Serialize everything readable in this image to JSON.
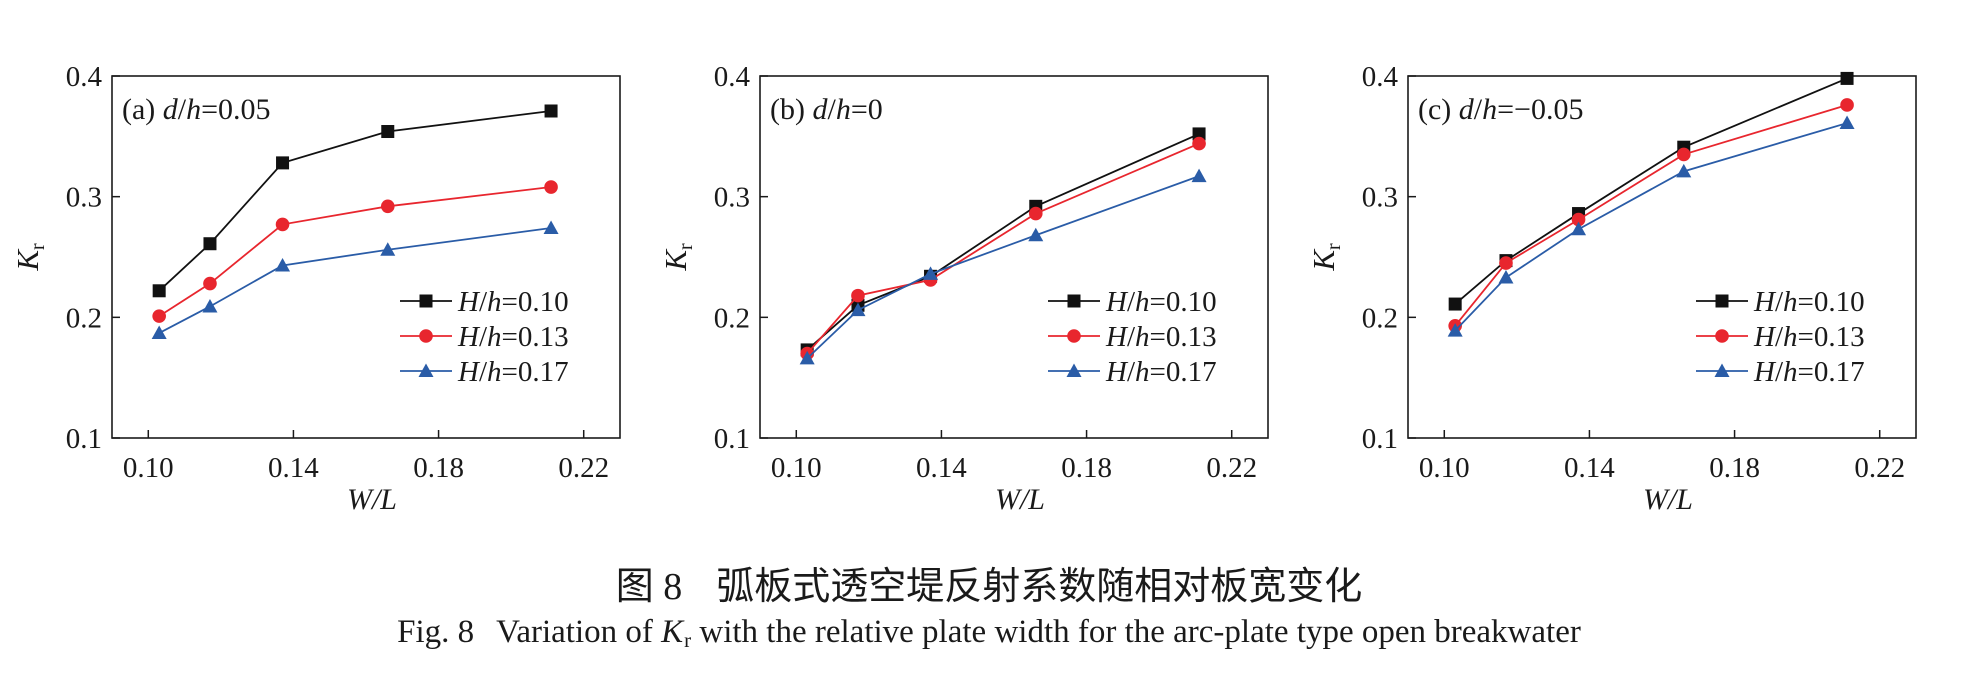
{
  "caption": {
    "cn_number": "图 8",
    "cn_text": "弧板式透空堤反射系数随相对板宽变化",
    "en_number": "Fig. 8",
    "en_prefix": "Variation of",
    "en_symbol": "K",
    "en_subscript": "r",
    "en_suffix": "with the relative plate width for the arc-plate type open breakwater"
  },
  "colors": {
    "H010": "#111111",
    "H013": "#e8262e",
    "H017": "#2a5ca7"
  },
  "chart_data": [
    {
      "type": "line",
      "panel": "a",
      "panel_label": "(a)",
      "panel_var": "d/h",
      "panel_value": "=0.05",
      "xlabel": "W/L",
      "ylabel": "K",
      "ylabel_sub": "r",
      "xlim": [
        0.09,
        0.23
      ],
      "ylim": [
        0.1,
        0.4
      ],
      "xticks": [
        "0.10",
        "0.14",
        "0.18",
        "0.22"
      ],
      "yticks": [
        "0.1",
        "0.2",
        "0.3",
        "0.4"
      ],
      "x": [
        0.103,
        0.117,
        0.137,
        0.166,
        0.211
      ],
      "legend_position": "bottom-right",
      "series": [
        {
          "name": "H/h=0.10",
          "values": [
            0.222,
            0.261,
            0.328,
            0.354,
            0.371
          ],
          "marker": "square",
          "color": "#111111"
        },
        {
          "name": "H/h=0.13",
          "values": [
            0.201,
            0.228,
            0.277,
            0.292,
            0.308
          ],
          "marker": "circle",
          "color": "#e8262e"
        },
        {
          "name": "H/h=0.17",
          "values": [
            0.187,
            0.209,
            0.243,
            0.256,
            0.274
          ],
          "marker": "triangle",
          "color": "#2a5ca7"
        }
      ]
    },
    {
      "type": "line",
      "panel": "b",
      "panel_label": "(b)",
      "panel_var": "d/h",
      "panel_value": "=0",
      "xlabel": "W/L",
      "ylabel": "K",
      "ylabel_sub": "r",
      "xlim": [
        0.09,
        0.23
      ],
      "ylim": [
        0.1,
        0.4
      ],
      "xticks": [
        "0.10",
        "0.14",
        "0.18",
        "0.22"
      ],
      "yticks": [
        "0.1",
        "0.2",
        "0.3",
        "0.4"
      ],
      "x": [
        0.103,
        0.117,
        0.137,
        0.166,
        0.211
      ],
      "legend_position": "bottom-right",
      "series": [
        {
          "name": "H/h=0.10",
          "values": [
            0.173,
            0.21,
            0.234,
            0.292,
            0.352
          ],
          "marker": "square",
          "color": "#111111"
        },
        {
          "name": "H/h=0.13",
          "values": [
            0.17,
            0.218,
            0.231,
            0.286,
            0.344
          ],
          "marker": "circle",
          "color": "#e8262e"
        },
        {
          "name": "H/h=0.17",
          "values": [
            0.166,
            0.206,
            0.236,
            0.268,
            0.317
          ],
          "marker": "triangle",
          "color": "#2a5ca7"
        }
      ]
    },
    {
      "type": "line",
      "panel": "c",
      "panel_label": "(c)",
      "panel_var": "d/h",
      "panel_value": "=−0.05",
      "xlabel": "W/L",
      "ylabel": "K",
      "ylabel_sub": "r",
      "xlim": [
        0.09,
        0.23
      ],
      "ylim": [
        0.1,
        0.4
      ],
      "xticks": [
        "0.10",
        "0.14",
        "0.18",
        "0.22"
      ],
      "yticks": [
        "0.1",
        "0.2",
        "0.3",
        "0.4"
      ],
      "x": [
        0.103,
        0.117,
        0.137,
        0.166,
        0.211
      ],
      "legend_position": "bottom-right",
      "series": [
        {
          "name": "H/h=0.10",
          "values": [
            0.211,
            0.247,
            0.286,
            0.341,
            0.398
          ],
          "marker": "square",
          "color": "#111111"
        },
        {
          "name": "H/h=0.13",
          "values": [
            0.193,
            0.245,
            0.281,
            0.335,
            0.376
          ],
          "marker": "circle",
          "color": "#e8262e"
        },
        {
          "name": "H/h=0.17",
          "values": [
            0.189,
            0.233,
            0.273,
            0.321,
            0.361
          ],
          "marker": "triangle",
          "color": "#2a5ca7"
        }
      ]
    }
  ]
}
